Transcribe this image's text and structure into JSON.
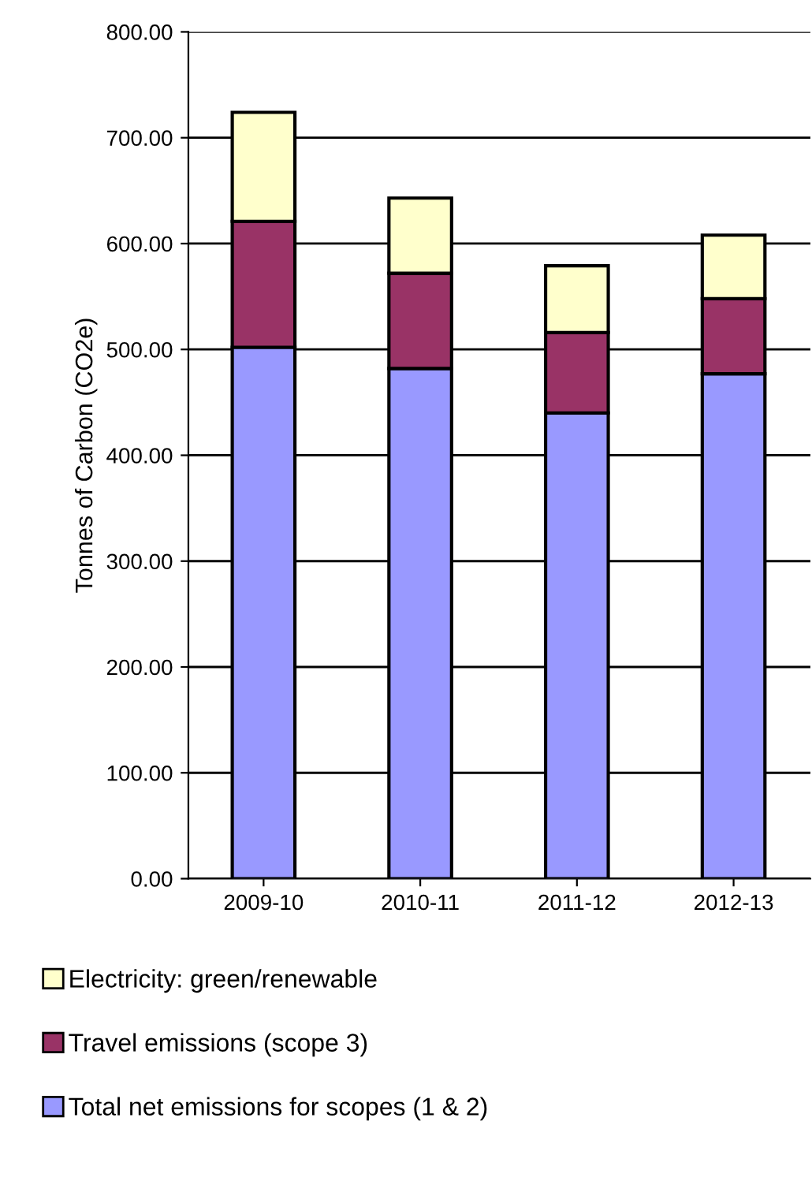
{
  "chart_data": {
    "type": "bar",
    "stacked": true,
    "ylabel": "Tonnes of Carbon (CO2e)",
    "categories": [
      "2009-10",
      "2010-11",
      "2011-12",
      "2012-13"
    ],
    "series": [
      {
        "name": "Total net emissions for scopes (1 & 2)",
        "color": "#9999ff",
        "values": [
          502,
          482,
          440,
          477
        ]
      },
      {
        "name": "Travel emissions (scope 3)",
        "color": "#993366",
        "values": [
          119,
          90,
          76,
          71
        ]
      },
      {
        "name": "Electricity: green/renewable",
        "color": "#ffffcc",
        "values": [
          103,
          71,
          63,
          60
        ]
      }
    ],
    "ylim": [
      0,
      800
    ],
    "yticks": [
      {
        "value": 0,
        "label": "0.00"
      },
      {
        "value": 100,
        "label": "100.00"
      },
      {
        "value": 200,
        "label": "200.00"
      },
      {
        "value": 300,
        "label": "300.00"
      },
      {
        "value": 400,
        "label": "400.00"
      },
      {
        "value": 500,
        "label": "500.00"
      },
      {
        "value": 600,
        "label": "600.00"
      },
      {
        "value": 700,
        "label": "700.00"
      },
      {
        "value": 800,
        "label": "800.00"
      }
    ],
    "grid": "y",
    "legend": "bottom"
  }
}
